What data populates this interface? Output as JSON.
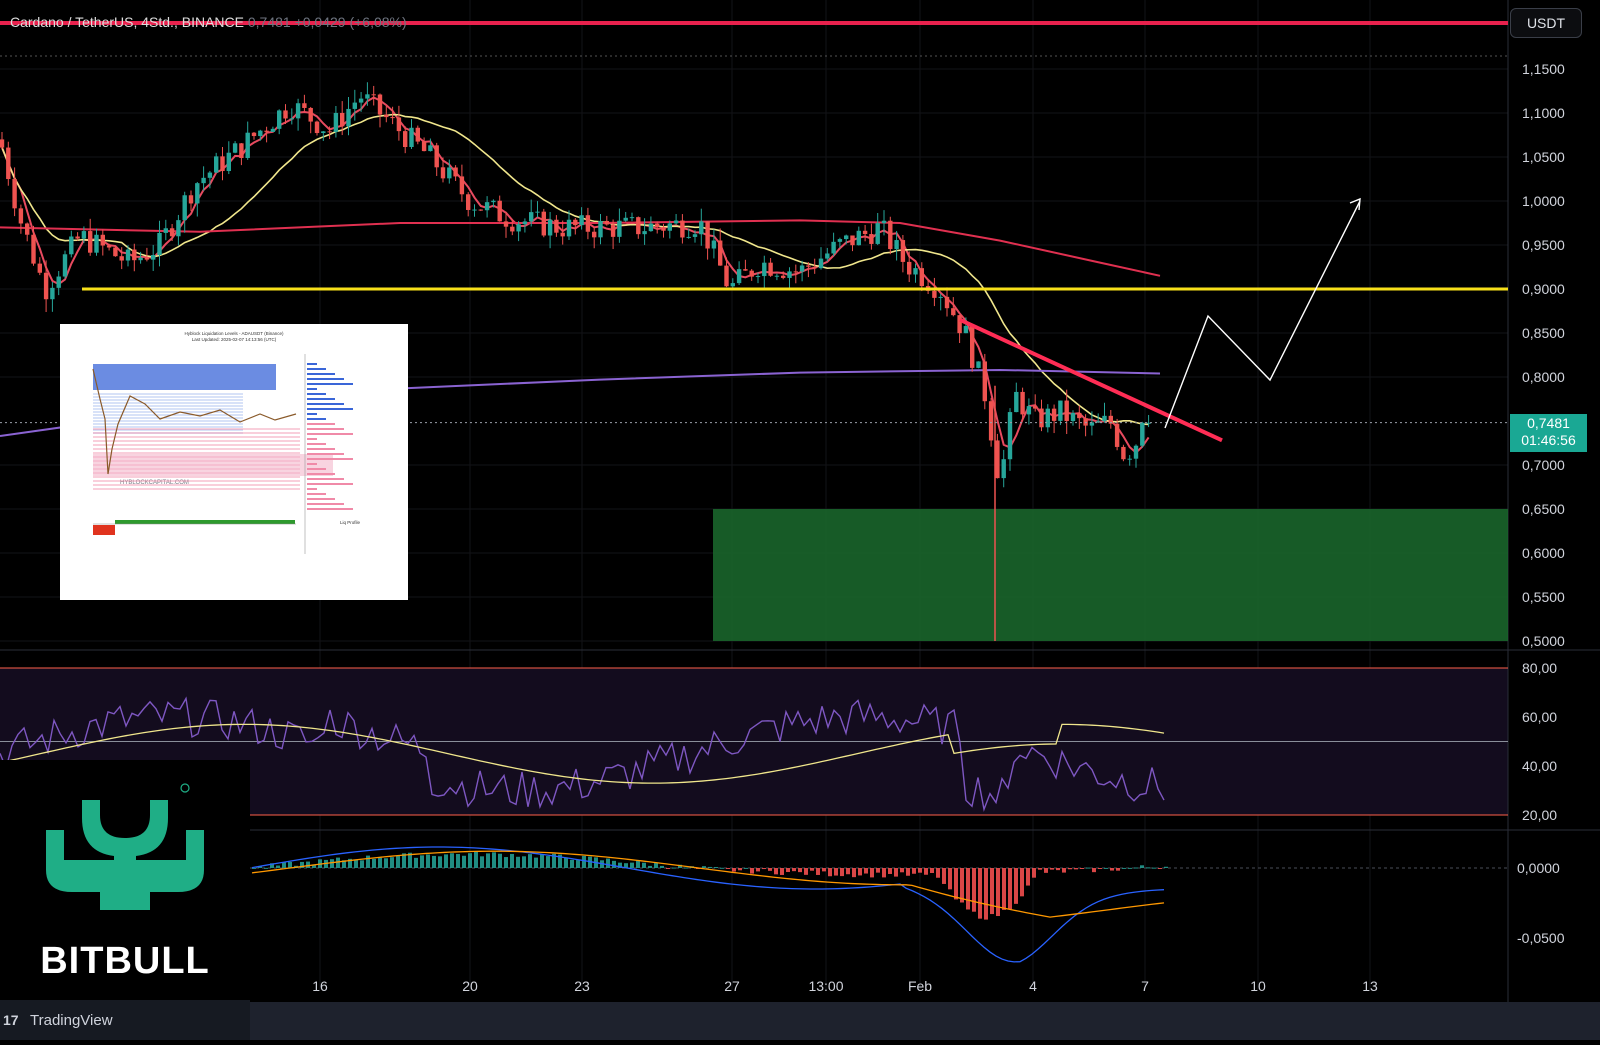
{
  "header": {
    "symbol": "Cardano / TetherUS, 4Std., BINANCE",
    "last": "0,7481",
    "change": "+0,0429 (+6,08%)"
  },
  "currency_button": "USDT",
  "price_tag": {
    "price": "0,7481",
    "countdown": "01:46:56"
  },
  "price_axis_labels": [
    "1,1500",
    "1,1000",
    "1,0500",
    "1,0000",
    "0,9500",
    "0,9000",
    "0,8500",
    "0,8000",
    "0,7000",
    "0,6500",
    "0,6000",
    "0,5500",
    "0,5000"
  ],
  "rsi_axis_labels": [
    "80,00",
    "60,00",
    "40,00",
    "20,00"
  ],
  "macd_axis_labels": [
    "0,0000",
    "-0,0500"
  ],
  "time_axis_labels": [
    "16",
    "20",
    "23",
    "27",
    "13:00",
    "Feb",
    "4",
    "7",
    "10",
    "13"
  ],
  "logo": {
    "text": "BITBULL",
    "brand_color": "#1fae86"
  },
  "footer": {
    "brand": "TradingView"
  },
  "inset": {
    "title_lines": [
      "Hyblock Liquidation Levels - ADAUSDT (Binance)",
      "Last Updated: 2025-02-07 14:13:56 (UTC)"
    ],
    "watermark": "HYBLOCKCAPITAL.COM",
    "profile_label": "Liq Profile"
  },
  "colors": {
    "up": "#26a69a",
    "down": "#ef5350",
    "ma_short": "#e84a5f",
    "ma_mid": "#f0e68c",
    "ma_long": "#e03050",
    "ma_200": "#8a63d2",
    "support_line": "#f7e01a",
    "top_line": "#e8214d",
    "zone": "#1b6b2e",
    "trendline": "#ff2d55"
  },
  "chart_data": {
    "type": "candlestick",
    "price_range": [
      0.5,
      1.15
    ],
    "rsi_levels": [
      20,
      50,
      80
    ],
    "macd_range": [
      -0.05,
      0.0
    ],
    "horizontal_levels": [
      0.9,
      1.2
    ],
    "demand_zone": [
      0.5,
      0.65
    ],
    "current_price": 0.7481
  }
}
